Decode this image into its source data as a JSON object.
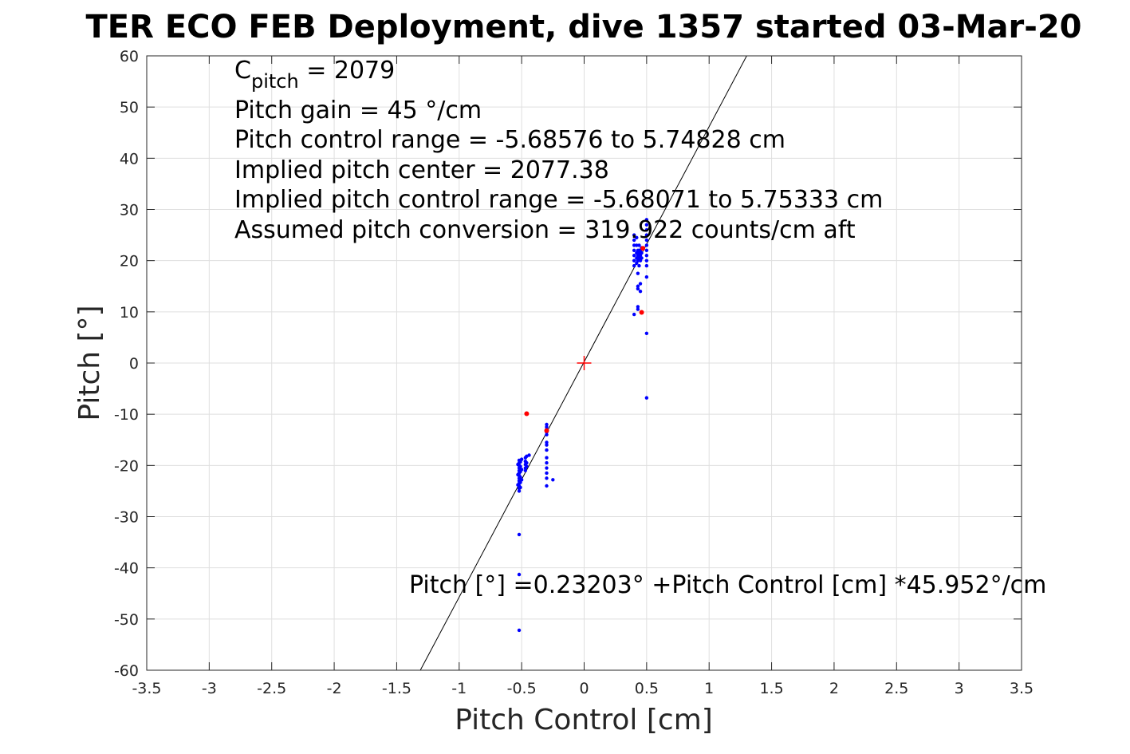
{
  "chart_data": {
    "type": "scatter",
    "title": "TER ECO FEB Deployment, dive 1357 started 03-Mar-20",
    "xlabel": "Pitch Control [cm]",
    "ylabel": "Pitch [°]",
    "xlim": [
      -3.5,
      3.5
    ],
    "ylim": [
      -60,
      60
    ],
    "xticks": [
      "-3.5",
      "-3",
      "-2.5",
      "-2",
      "-1.5",
      "-1",
      "-0.5",
      "0",
      "0.5",
      "1",
      "1.5",
      "2",
      "2.5",
      "3",
      "3.5"
    ],
    "yticks": [
      "60",
      "50",
      "40",
      "30",
      "20",
      "10",
      "0",
      "-10",
      "-20",
      "-30",
      "-40",
      "-50",
      "-60"
    ],
    "grid": true,
    "annotations": {
      "cpitch_symbol": "C",
      "cpitch_sub": "pitch",
      "cpitch_value": " = 2079",
      "line2": "Pitch gain = 45 °/cm",
      "line3": "Pitch control range = -5.68576 to 5.74828 cm",
      "line4": "Implied pitch center = 2077.38",
      "line5": "Implied pitch control range = -5.68071 to 5.75333 cm",
      "line6": "Assumed pitch conversion = 319.922 counts/cm aft",
      "fit_label": "Pitch [°] =0.23203° +Pitch Control [cm] *45.952°/cm"
    },
    "fit_line": {
      "intercept": 0.23203,
      "slope": 45.952
    },
    "marker": {
      "x": 0,
      "y": 0,
      "color": "#ff0000"
    },
    "series": [
      {
        "color": "#0000ff",
        "points": [
          [
            -0.52,
            -19
          ],
          [
            -0.52,
            -19.5
          ],
          [
            -0.52,
            -20
          ],
          [
            -0.52,
            -20.5
          ],
          [
            -0.52,
            -21
          ],
          [
            -0.52,
            -21.5
          ],
          [
            -0.52,
            -22
          ],
          [
            -0.52,
            -22.5
          ],
          [
            -0.52,
            -23
          ],
          [
            -0.52,
            -23.5
          ],
          [
            -0.52,
            -24
          ],
          [
            -0.52,
            -24.5
          ],
          [
            -0.52,
            -25
          ],
          [
            -0.51,
            -19.3
          ],
          [
            -0.51,
            -20.2
          ],
          [
            -0.51,
            -21.2
          ],
          [
            -0.51,
            -22.3
          ],
          [
            -0.51,
            -23.3
          ],
          [
            -0.51,
            -24.3
          ],
          [
            -0.53,
            -19.8
          ],
          [
            -0.53,
            -21.8
          ],
          [
            -0.53,
            -23.8
          ],
          [
            -0.5,
            -18.8
          ],
          [
            -0.5,
            -20.8
          ],
          [
            -0.5,
            -22.8
          ],
          [
            -0.47,
            -18.5
          ],
          [
            -0.47,
            -19.2
          ],
          [
            -0.47,
            -19.8
          ],
          [
            -0.47,
            -20.5
          ],
          [
            -0.47,
            -21
          ],
          [
            -0.46,
            -18.2
          ],
          [
            -0.46,
            -19.5
          ],
          [
            -0.46,
            -20.2
          ],
          [
            -0.44,
            -18
          ],
          [
            -0.3,
            -12
          ],
          [
            -0.3,
            -12.5
          ],
          [
            -0.3,
            -13
          ],
          [
            -0.3,
            -13.5
          ],
          [
            -0.3,
            -14
          ],
          [
            -0.3,
            -15.5
          ],
          [
            -0.3,
            -16
          ],
          [
            -0.3,
            -17
          ],
          [
            -0.3,
            -18.5
          ],
          [
            -0.3,
            -19.5
          ],
          [
            -0.3,
            -20.5
          ],
          [
            -0.3,
            -21.5
          ],
          [
            -0.3,
            -22.5
          ],
          [
            -0.3,
            -24
          ],
          [
            -0.25,
            -22.8
          ],
          [
            -0.52,
            -33.5
          ],
          [
            -0.52,
            -41.3
          ],
          [
            -0.52,
            -52.2
          ],
          [
            0.4,
            19
          ],
          [
            0.4,
            20
          ],
          [
            0.4,
            21
          ],
          [
            0.4,
            22
          ],
          [
            0.4,
            23
          ],
          [
            0.4,
            24
          ],
          [
            0.4,
            25
          ],
          [
            0.4,
            9.5
          ],
          [
            0.42,
            19.5
          ],
          [
            0.42,
            20.5
          ],
          [
            0.42,
            21.5
          ],
          [
            0.42,
            23
          ],
          [
            0.42,
            24.5
          ],
          [
            0.43,
            20
          ],
          [
            0.43,
            21
          ],
          [
            0.43,
            22
          ],
          [
            0.43,
            17.5
          ],
          [
            0.43,
            15
          ],
          [
            0.43,
            14.5
          ],
          [
            0.43,
            11
          ],
          [
            0.43,
            10.5
          ],
          [
            0.44,
            19
          ],
          [
            0.44,
            20.5
          ],
          [
            0.44,
            21.5
          ],
          [
            0.44,
            22
          ],
          [
            0.44,
            23
          ],
          [
            0.45,
            20
          ],
          [
            0.45,
            21
          ],
          [
            0.45,
            22
          ],
          [
            0.45,
            15.5
          ],
          [
            0.45,
            14
          ],
          [
            0.46,
            20.5
          ],
          [
            0.46,
            21.5
          ],
          [
            0.46,
            22.5
          ],
          [
            0.5,
            28
          ],
          [
            0.5,
            27
          ],
          [
            0.5,
            26
          ],
          [
            0.5,
            25
          ],
          [
            0.5,
            24
          ],
          [
            0.5,
            23
          ],
          [
            0.5,
            22
          ],
          [
            0.5,
            21
          ],
          [
            0.5,
            20
          ],
          [
            0.5,
            19
          ],
          [
            0.5,
            16.8
          ],
          [
            0.5,
            5.8
          ],
          [
            0.5,
            -6.8
          ]
        ]
      },
      {
        "color": "#ff0000",
        "points": [
          [
            -0.46,
            -9.9
          ],
          [
            0.46,
            9.9
          ],
          [
            -0.3,
            -13.2
          ],
          [
            0.47,
            22.4
          ]
        ]
      }
    ]
  }
}
